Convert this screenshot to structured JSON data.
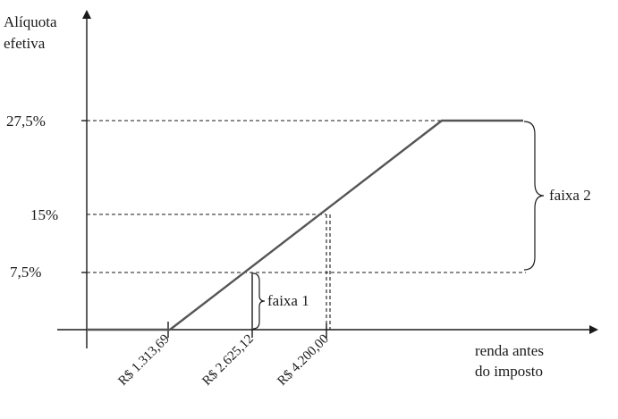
{
  "y_axis_label": [
    "Alíquota",
    "efetiva"
  ],
  "x_axis_label": [
    "renda antes",
    "do imposto"
  ],
  "y_ticks": [
    "27,5%",
    "15%",
    "7,5%"
  ],
  "x_ticks": [
    "R$ 1.313,69",
    "R$ 2.625,12",
    "R$ 4.200,00"
  ],
  "brackets": {
    "faixa1": "faixa 1",
    "faixa2": "faixa 2"
  },
  "colors": {
    "curve": "#555555",
    "ink": "#1a1a1a"
  }
}
